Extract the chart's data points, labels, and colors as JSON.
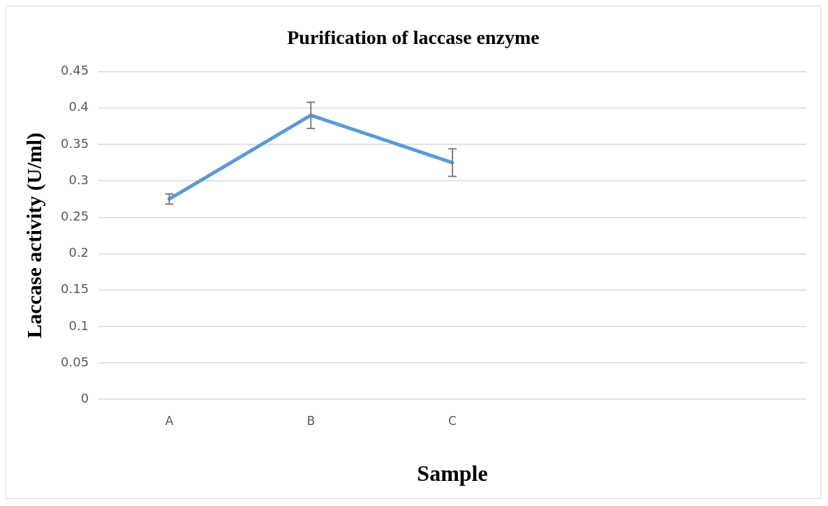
{
  "chart_data": {
    "type": "line",
    "title": "Purification of laccase enzyme",
    "xlabel": "Sample",
    "ylabel": "Laccase activity (U/ml)",
    "categories": [
      "A",
      "B",
      "C",
      null,
      null
    ],
    "series": [
      {
        "color": "#5b9bd5",
        "values": [
          0.275,
          0.39,
          0.325,
          null,
          null
        ],
        "errors": [
          0.007,
          0.018,
          0.019,
          null,
          null
        ]
      }
    ],
    "ylim": [
      0,
      0.45
    ],
    "yticks": [
      0,
      0.05,
      0.1,
      0.15,
      0.2,
      0.25,
      0.3,
      0.35,
      0.4,
      0.45
    ],
    "grid": "y",
    "legend": false,
    "marker": "none",
    "line_style": "solid"
  }
}
